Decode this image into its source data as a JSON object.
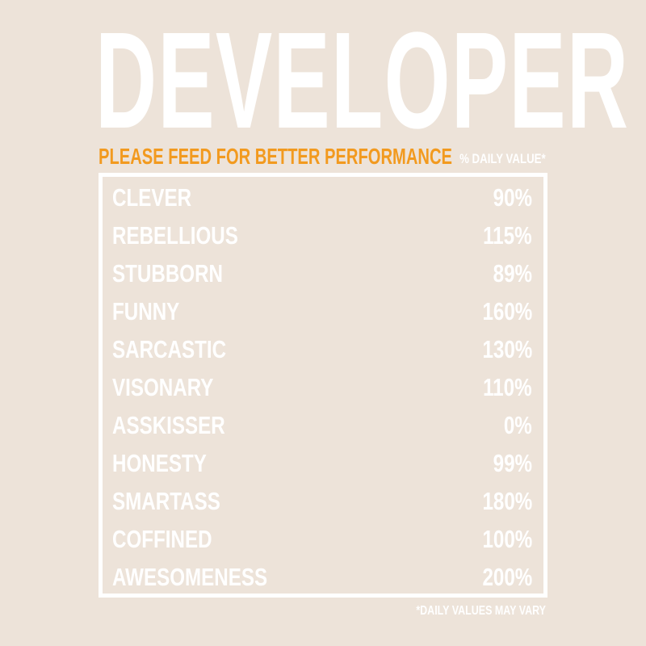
{
  "title": "DEVELOPER",
  "subtitle": "PLEASE FEED FOR BETTER PERFORMANCE",
  "daily_value_header": "% DAILY VALUE*",
  "facts": [
    {
      "label": "CLEVER",
      "value": "90%"
    },
    {
      "label": "REBELLIOUS",
      "value": "115%"
    },
    {
      "label": "STUBBORN",
      "value": "89%"
    },
    {
      "label": "FUNNY",
      "value": "160%"
    },
    {
      "label": "SARCASTIC",
      "value": "130%"
    },
    {
      "label": "VISONARY",
      "value": "110%"
    },
    {
      "label": "ASSKISSER",
      "value": "0%"
    },
    {
      "label": "HONESTY",
      "value": "99%"
    },
    {
      "label": "SMARTASS",
      "value": "180%"
    },
    {
      "label": "COFFINED",
      "value": "100%"
    },
    {
      "label": "AWESOMENESS",
      "value": "200%"
    }
  ],
  "footnote": "*DAILY VALUES MAY VARY",
  "colors": {
    "background": "#ede3d9",
    "text": "#ffffff",
    "accent": "#f29a1f"
  }
}
